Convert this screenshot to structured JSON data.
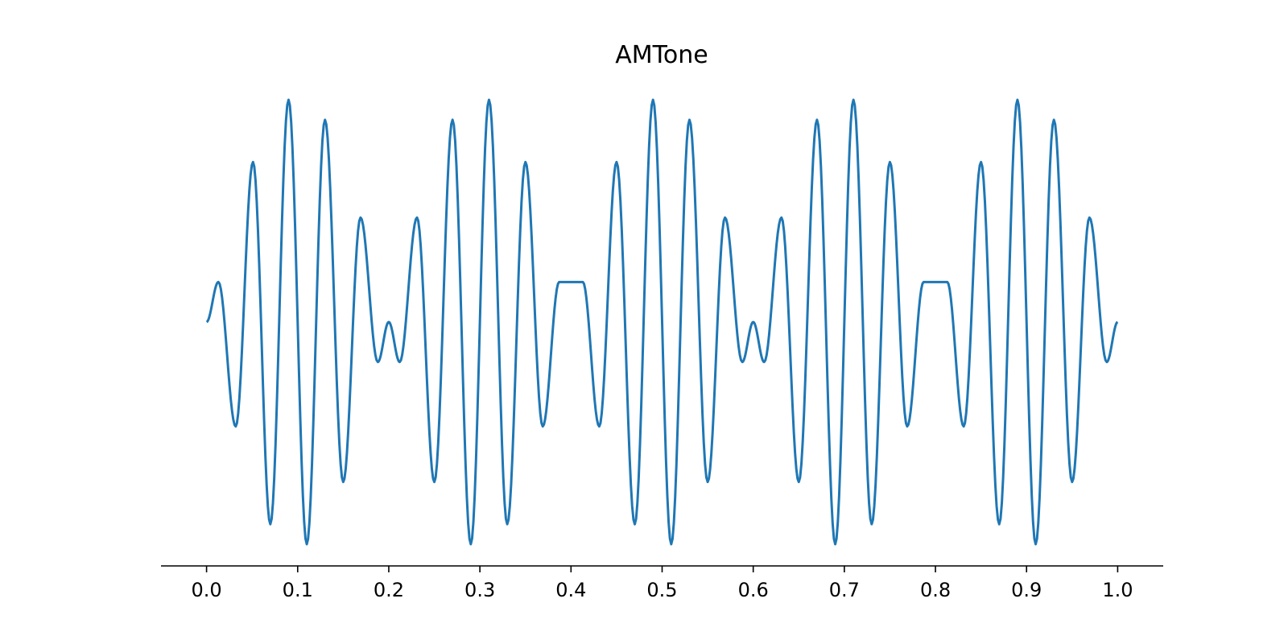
{
  "chart_data": {
    "type": "line",
    "title": "AMTone",
    "xlabel": "",
    "ylabel": "",
    "xlim": [
      -0.05,
      1.05
    ],
    "ylim": [
      -1.0,
      1.0
    ],
    "x_ticks": [
      0.0,
      0.1,
      0.2,
      0.3,
      0.4,
      0.5,
      0.6,
      0.7,
      0.8,
      0.9,
      1.0
    ],
    "x_tick_labels": [
      "0.0",
      "0.1",
      "0.2",
      "0.3",
      "0.4",
      "0.5",
      "0.6",
      "0.7",
      "0.8",
      "0.9",
      "1.0"
    ],
    "y_axis_visible": false,
    "grid": false,
    "series": [
      {
        "color": "#1f77b4",
        "x": [
          0.0,
          0.013,
          0.032,
          0.051,
          0.07,
          0.09,
          0.11,
          0.13,
          0.15,
          0.169,
          0.188,
          0.2,
          0.212,
          0.231,
          0.25,
          0.27,
          0.29,
          0.31,
          0.33,
          0.35,
          0.369,
          0.387,
          0.4,
          0.413,
          0.431,
          0.45,
          0.47,
          0.49,
          0.51,
          0.53,
          0.55,
          0.569,
          0.588,
          0.6,
          0.612,
          0.631,
          0.65,
          0.67,
          0.69,
          0.71,
          0.73,
          0.75,
          0.769,
          0.787,
          0.8,
          0.813,
          0.831,
          0.85,
          0.87,
          0.89,
          0.91,
          0.93,
          0.95,
          0.969,
          0.988,
          1.0
        ],
        "y": [
          0.0,
          0.18,
          -0.47,
          0.72,
          -0.91,
          1.0,
          -1.0,
          0.91,
          -0.72,
          0.47,
          -0.18,
          0.0,
          -0.18,
          0.47,
          -0.72,
          0.91,
          -1.0,
          1.0,
          -0.91,
          0.72,
          -0.47,
          0.18,
          0.18,
          0.18,
          -0.47,
          0.72,
          -0.91,
          1.0,
          -1.0,
          0.91,
          -0.72,
          0.47,
          -0.18,
          0.0,
          -0.18,
          0.47,
          -0.72,
          0.91,
          -1.0,
          1.0,
          -0.91,
          0.72,
          -0.47,
          0.18,
          0.18,
          0.18,
          -0.47,
          0.72,
          -0.91,
          1.0,
          -1.0,
          0.91,
          -0.72,
          0.47,
          -0.18,
          0.0
        ]
      }
    ]
  }
}
